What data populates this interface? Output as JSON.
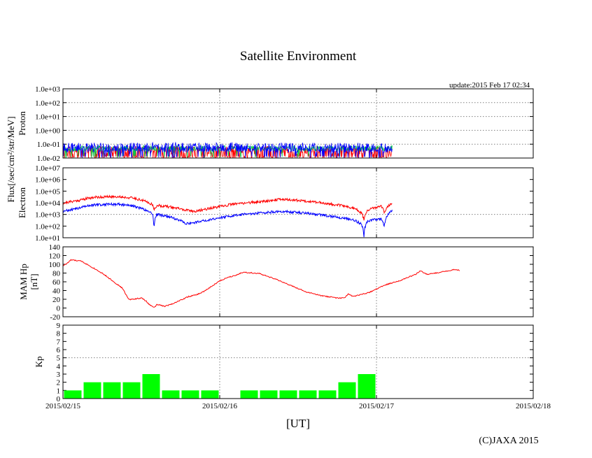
{
  "title": "Satellite Environment",
  "update_text": "update:2015 Feb 17 02:34",
  "copyright": "(C)JAXA 2015",
  "flux_label": "Flux[/sec/cm²/str/MeV]",
  "x_axis": {
    "label": "[UT]",
    "ticks": [
      "2015/02/15",
      "2015/02/16",
      "2015/02/17",
      "2015/02/18"
    ],
    "range_days": [
      0,
      3
    ],
    "data_end_day": 2.1
  },
  "chart_data": [
    {
      "type": "line",
      "panel": "proton",
      "ylabel": "Proton",
      "yscale": "log",
      "ylim_exp": [
        -2,
        3
      ],
      "ytick_labels": [
        "1.0e-02",
        "1.0e-01",
        "1.0e+00",
        "1.0e+01",
        "1.0e+02",
        "1.0e+03"
      ],
      "colors": {
        "upper": "#0000ff",
        "middle": "#00cc44",
        "lower": "#ff0000"
      },
      "approx_level": 0.05
    },
    {
      "type": "line",
      "panel": "electron",
      "ylabel": "Electron",
      "yscale": "log",
      "ylim_exp": [
        1,
        7
      ],
      "ytick_labels": [
        "1.0e+01",
        "1.0e+02",
        "1.0e+03",
        "1.0e+04",
        "1.0e+05",
        "1.0e+06",
        "1.0e+07"
      ],
      "series": [
        {
          "color": "#ff0000",
          "points": [
            [
              0,
              9000
            ],
            [
              0.1,
              16000
            ],
            [
              0.2,
              30000
            ],
            [
              0.35,
              34000
            ],
            [
              0.45,
              25000
            ],
            [
              0.52,
              14000
            ],
            [
              0.57,
              7000
            ],
            [
              0.58,
              2000
            ],
            [
              0.6,
              6000
            ],
            [
              0.7,
              4000
            ],
            [
              0.78,
              2300
            ],
            [
              0.85,
              1800
            ],
            [
              1.0,
              4500
            ],
            [
              1.1,
              8000
            ],
            [
              1.25,
              12000
            ],
            [
              1.4,
              20000
            ],
            [
              1.55,
              14000
            ],
            [
              1.7,
              8000
            ],
            [
              1.85,
              3500
            ],
            [
              1.9,
              1500
            ],
            [
              1.92,
              300
            ],
            [
              1.95,
              2500
            ],
            [
              2.03,
              5000
            ],
            [
              2.05,
              1200
            ],
            [
              2.1,
              9000
            ]
          ]
        },
        {
          "color": "#0000ff",
          "points": [
            [
              0,
              1800
            ],
            [
              0.1,
              3200
            ],
            [
              0.2,
              7000
            ],
            [
              0.35,
              7500
            ],
            [
              0.45,
              5000
            ],
            [
              0.52,
              2600
            ],
            [
              0.57,
              1200
            ],
            [
              0.58,
              30
            ],
            [
              0.6,
              1000
            ],
            [
              0.7,
              500
            ],
            [
              0.78,
              170
            ],
            [
              0.85,
              200
            ],
            [
              1.0,
              500
            ],
            [
              1.1,
              800
            ],
            [
              1.25,
              1300
            ],
            [
              1.4,
              1800
            ],
            [
              1.55,
              1300
            ],
            [
              1.7,
              700
            ],
            [
              1.85,
              350
            ],
            [
              1.9,
              150
            ],
            [
              1.92,
              10
            ],
            [
              1.95,
              300
            ],
            [
              2.03,
              400
            ],
            [
              2.05,
              60
            ],
            [
              2.1,
              2000
            ]
          ]
        }
      ]
    },
    {
      "type": "line",
      "panel": "mam_hp",
      "ylabel": "MAM Hp [nT]",
      "ylim": [
        -20,
        140
      ],
      "yticks": [
        -20,
        0,
        20,
        40,
        60,
        80,
        100,
        120,
        140
      ],
      "series": [
        {
          "color": "#ff0000",
          "points": [
            [
              0,
              97
            ],
            [
              0.03,
              103
            ],
            [
              0.05,
              110
            ],
            [
              0.12,
              107
            ],
            [
              0.25,
              80
            ],
            [
              0.38,
              45
            ],
            [
              0.42,
              19
            ],
            [
              0.5,
              23
            ],
            [
              0.53,
              16
            ],
            [
              0.55,
              8
            ],
            [
              0.57,
              5
            ],
            [
              0.58,
              0
            ],
            [
              0.6,
              8
            ],
            [
              0.65,
              4
            ],
            [
              0.7,
              10
            ],
            [
              0.8,
              26
            ],
            [
              0.85,
              30
            ],
            [
              0.9,
              38
            ],
            [
              1.0,
              62
            ],
            [
              1.05,
              70
            ],
            [
              1.1,
              75
            ],
            [
              1.15,
              82
            ],
            [
              1.25,
              79
            ],
            [
              1.35,
              67
            ],
            [
              1.45,
              52
            ],
            [
              1.55,
              37
            ],
            [
              1.65,
              28
            ],
            [
              1.75,
              23
            ],
            [
              1.8,
              23
            ],
            [
              1.82,
              33
            ],
            [
              1.85,
              26
            ],
            [
              1.95,
              35
            ],
            [
              2.05,
              52
            ],
            [
              2.15,
              63
            ],
            [
              2.25,
              77
            ],
            [
              2.28,
              85
            ],
            [
              2.32,
              77
            ],
            [
              2.38,
              80
            ],
            [
              2.45,
              85
            ],
            [
              2.5,
              88
            ],
            [
              2.53,
              86
            ]
          ]
        }
      ]
    },
    {
      "type": "bar",
      "panel": "kp",
      "ylabel": "Kp",
      "ylim": [
        0,
        9
      ],
      "yticks": [
        0,
        1,
        2,
        3,
        4,
        5,
        6,
        7,
        8,
        9
      ],
      "color": "#00ff00",
      "bin_hours": 3,
      "values": [
        1,
        2,
        2,
        2,
        3,
        1,
        1,
        1,
        null,
        1,
        1,
        1,
        1,
        1,
        2,
        3
      ]
    }
  ]
}
